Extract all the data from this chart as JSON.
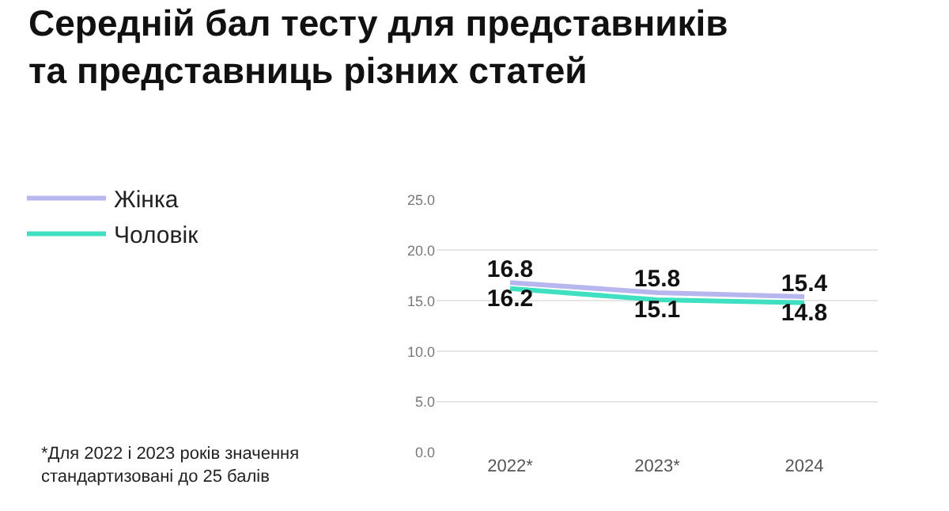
{
  "chart_data": {
    "type": "line",
    "title": "Середній бал тесту для представників та представниць різних статей",
    "categories": [
      "2022*",
      "2023*",
      "2024"
    ],
    "series": [
      {
        "name": "Жінка",
        "color": "#b8b6ee",
        "values": [
          16.8,
          15.8,
          15.4
        ]
      },
      {
        "name": "Чоловік",
        "color": "#3fe0c2",
        "values": [
          16.2,
          15.1,
          14.8
        ]
      }
    ],
    "ylim": [
      0,
      25
    ],
    "yticks": [
      {
        "value": 0,
        "label": "0.0"
      },
      {
        "value": 5,
        "label": "5.0"
      },
      {
        "value": 10,
        "label": "10.0"
      },
      {
        "value": 15,
        "label": "15.0"
      },
      {
        "value": 20,
        "label": "20.0"
      },
      {
        "value": 25,
        "label": "25.0"
      }
    ],
    "grid": "y",
    "legend": "left",
    "marker": "none",
    "line_style": "solid",
    "data_labels": true,
    "annotations": [
      "*Для 2022 і 2023 років значення стандартизовані до 25 балів"
    ]
  }
}
